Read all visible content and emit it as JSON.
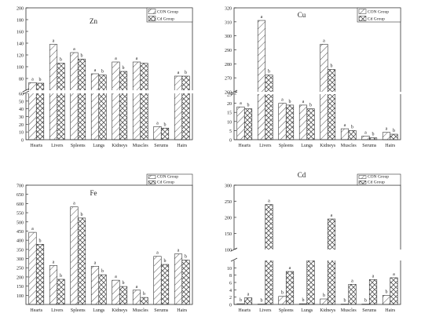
{
  "chart_data": [
    {
      "type": "bar",
      "title": "Zn",
      "categories": [
        "Hearts",
        "Livers",
        "Spleens",
        "Lungs",
        "Kidneys",
        "Muscles",
        "Serums",
        "Hairs"
      ],
      "series": [
        {
          "name": "CON Group",
          "values": [
            73,
            138,
            124,
            88,
            108,
            108,
            17,
            84
          ],
          "labels": [
            "a",
            "a",
            "a",
            "a",
            "a",
            "a",
            "a",
            "a"
          ]
        },
        {
          "name": "Cd Group",
          "values": [
            72,
            106,
            113,
            86,
            92,
            106,
            15,
            84
          ],
          "labels": [
            "b",
            "b",
            "b",
            "b",
            "b",
            "",
            "b",
            "b"
          ]
        }
      ],
      "axis_break": [
        60,
        60
      ],
      "ylim": [
        0,
        200
      ],
      "yticks": [
        0,
        10,
        20,
        30,
        40,
        50,
        60,
        80,
        100,
        120,
        140,
        160,
        180,
        200
      ],
      "legend": "top-right",
      "grid": false
    },
    {
      "type": "bar",
      "title": "Cu",
      "categories": [
        "Hearts",
        "Livers",
        "Spleens",
        "Lungs",
        "Kidneys",
        "Muscles",
        "Serums",
        "Hairs"
      ],
      "series": [
        {
          "name": "CON Group",
          "values": [
            18,
            311,
            20,
            19,
            294,
            6,
            2,
            4
          ],
          "labels": [
            "a",
            "a",
            "a",
            "a",
            "a",
            "a",
            "a",
            "a"
          ]
        },
        {
          "name": "Cd Group",
          "values": [
            17,
            272,
            19,
            17,
            276,
            5,
            1,
            3
          ],
          "labels": [
            "b",
            "b",
            "b",
            "b",
            "b",
            "b",
            "b",
            "b"
          ]
        }
      ],
      "axis_break": [
        25,
        260
      ],
      "ylim": [
        0,
        320
      ],
      "yticks": [
        0,
        5,
        10,
        15,
        20,
        25,
        260,
        270,
        280,
        290,
        300,
        310,
        320
      ],
      "legend": "top-right",
      "grid": false
    },
    {
      "type": "bar",
      "title": "Fe",
      "categories": [
        "Hearts",
        "Livers",
        "Spleens",
        "Lungs",
        "Kidneys",
        "Muscles",
        "Serums",
        "Hairs"
      ],
      "series": [
        {
          "name": "CON Group",
          "values": [
            443,
            262,
            582,
            258,
            182,
            128,
            312,
            325
          ],
          "labels": [
            "a",
            "a",
            "a",
            "a",
            "a",
            "a",
            "a",
            "a"
          ]
        },
        {
          "name": "Cd Group",
          "values": [
            378,
            187,
            521,
            212,
            148,
            88,
            268,
            292
          ],
          "labels": [
            "b",
            "b",
            "b",
            "b",
            "b",
            "b",
            "b",
            "b"
          ]
        }
      ],
      "ylim": [
        50,
        700
      ],
      "yticks": [
        100,
        150,
        200,
        250,
        300,
        350,
        400,
        450,
        500,
        550,
        600,
        650,
        700
      ],
      "legend": "top-right",
      "grid": false
    },
    {
      "type": "bar",
      "title": "Cd",
      "categories": [
        "Hearts",
        "Livers",
        "Spleens",
        "Lungs",
        "Kidneys",
        "Muscles",
        "Serums",
        "Hairs"
      ],
      "series": [
        {
          "name": "CON Group",
          "values": [
            0.2,
            0.1,
            2.2,
            0.2,
            1.5,
            0.1,
            0.1,
            2.5
          ],
          "labels": [
            "b",
            "b",
            "b",
            "b",
            "b",
            "b",
            "b",
            "b"
          ]
        },
        {
          "name": "Cd Group",
          "values": [
            1.8,
            240,
            9,
            95,
            195,
            5.5,
            6.8,
            7.3
          ],
          "labels": [
            "a",
            "a",
            "a",
            "a",
            "a",
            "a",
            "a",
            "a"
          ]
        }
      ],
      "axis_break": [
        12,
        100
      ],
      "ylim": [
        0,
        300
      ],
      "yticks": [
        0,
        2,
        4,
        6,
        8,
        10,
        100,
        150,
        200,
        250,
        300
      ],
      "legend": "top-right",
      "grid": false
    }
  ]
}
